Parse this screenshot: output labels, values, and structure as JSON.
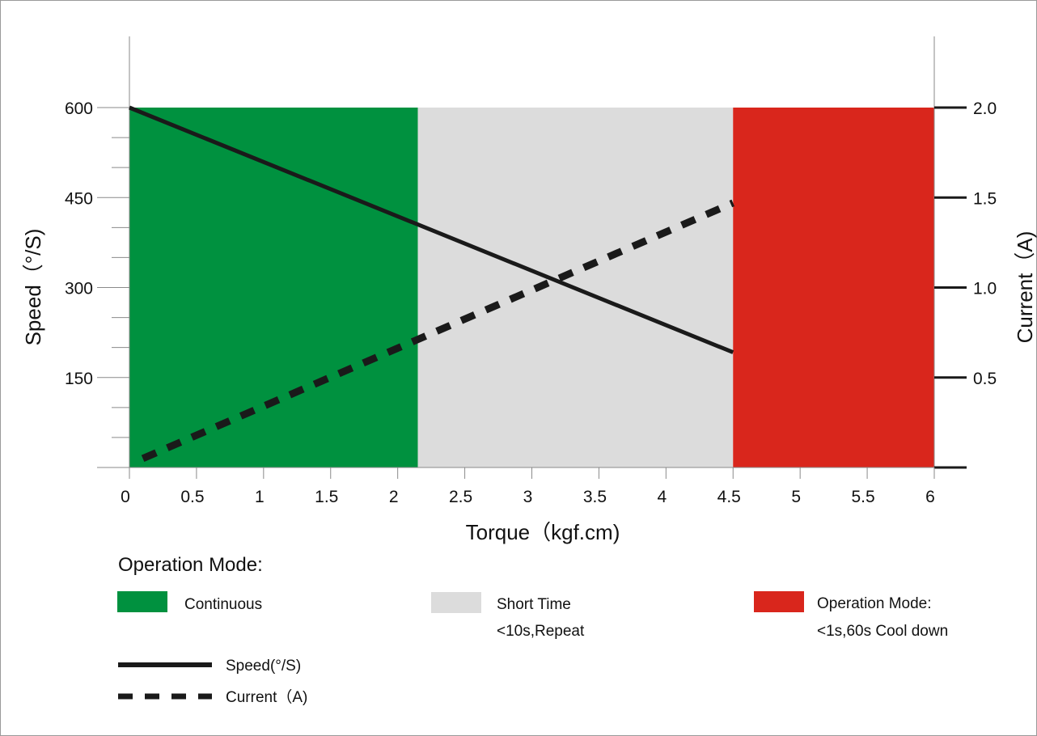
{
  "chart_data": {
    "type": "line",
    "xlabel": "Torque（kgf.cm)",
    "ylabel": "Speed（°/S)",
    "y2label": "Current（A)",
    "xlim": [
      0,
      6
    ],
    "ylim": [
      0,
      600
    ],
    "y2lim": [
      0,
      2.0
    ],
    "x_ticks": [
      "0",
      "0.5",
      "1",
      "1.5",
      "2",
      "2.5",
      "3",
      "3.5",
      "4",
      "4.5",
      "5",
      "5.5",
      "6"
    ],
    "y_ticks": [
      "150",
      "300",
      "450",
      "600"
    ],
    "y_tick_values": [
      150,
      300,
      450,
      600
    ],
    "y2_ticks": [
      "0.5",
      "1.0",
      "1.5",
      "2.0"
    ],
    "y2_tick_values": [
      0.5,
      1.0,
      1.5,
      2.0
    ],
    "regions": [
      {
        "label": "Continuous",
        "x_start": 0,
        "x_end": 2.15,
        "color": "#00913f"
      },
      {
        "label": "Short Time",
        "x_start": 2.15,
        "x_end": 4.5,
        "color": "#dcdcdc"
      },
      {
        "label": "Operation Mode:",
        "x_start": 4.5,
        "x_end": 6,
        "color": "#d9261c"
      }
    ],
    "series": [
      {
        "name": "Speed(°/S)",
        "axis": "left",
        "style": "solid",
        "color": "#1a1a1a",
        "x": [
          0,
          4.5
        ],
        "y": [
          600,
          192
        ]
      },
      {
        "name": "Current（A)",
        "axis": "right",
        "style": "dashed",
        "color": "#1a1a1a",
        "x": [
          0.1,
          4.5
        ],
        "y": [
          0.05,
          1.47
        ]
      }
    ]
  },
  "legend": {
    "title": "Operation Mode:",
    "modes": [
      {
        "label": "Continuous",
        "sublabel": "",
        "color": "#00913f"
      },
      {
        "label": "Short Time",
        "sublabel": "<10s,Repeat",
        "color": "#dcdcdc"
      },
      {
        "label": "Operation Mode:",
        "sublabel": "<1s,60s Cool down",
        "color": "#d9261c"
      }
    ],
    "lines": [
      {
        "label": "Speed(°/S)",
        "style": "solid"
      },
      {
        "label": "Current（A)",
        "style": "dashed"
      }
    ]
  }
}
